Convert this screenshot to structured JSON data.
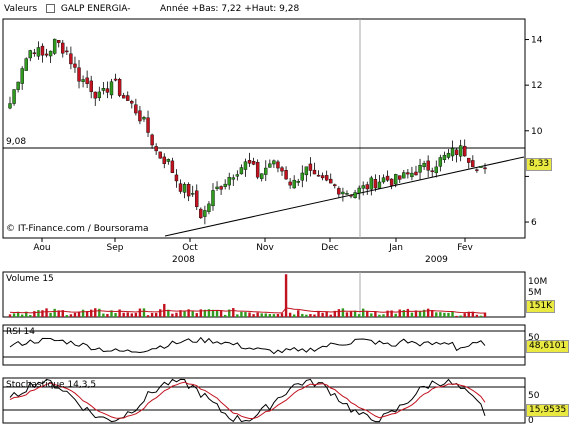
{
  "header": {
    "left": "Valeurs",
    "stock": "GALP ENERGIA-",
    "stats": "Année +Bas: 7,22 +Haut: 9,28"
  },
  "copyright": "© IT-Finance.com / Boursorama",
  "colors": {
    "up": "#2f9a1e",
    "down": "#c2121f",
    "current_bg": "#e9e942"
  },
  "chart_data": [
    {
      "type": "candlestick",
      "title": "GALP ENERGIA-",
      "x_tick_labels": [
        "Aou",
        "Sep",
        "Oct",
        "Nov",
        "Dec",
        "Jan",
        "Fev"
      ],
      "year_labels": [
        "2008",
        "2009"
      ],
      "y_ticks": [
        6,
        8,
        10,
        12,
        14
      ],
      "y_ticks_labeled": [
        "14",
        "12",
        "10",
        "6"
      ],
      "ylim": [
        5.3,
        14.9
      ],
      "reference_line": {
        "label": "9,08",
        "value": 9.08
      },
      "trend_line": {
        "from": [
          "early Oct",
          5.4
        ],
        "to": [
          "end Feb",
          8.9
        ]
      },
      "current_value": "8,33",
      "grid": "vertical line at year boundary",
      "approximate_path": [
        [
          "Aou",
          11.2
        ],
        [
          "Aou",
          12.8
        ],
        [
          "Aou",
          13.7
        ],
        [
          "Aou",
          13.2
        ],
        [
          "Aou",
          13.9
        ],
        [
          "Aou",
          13.5
        ],
        [
          "Sep",
          12.4
        ],
        [
          "Sep",
          12.0
        ],
        [
          "Sep",
          11.4
        ],
        [
          "Sep",
          12.2
        ],
        [
          "Sep",
          11.5
        ],
        [
          "Sep",
          11.0
        ],
        [
          "Sep",
          10.2
        ],
        [
          "Sep",
          9.0
        ],
        [
          "Oct",
          8.6
        ],
        [
          "Oct",
          7.6
        ],
        [
          "Oct",
          7.2
        ],
        [
          "Oct",
          6.2
        ],
        [
          "Oct",
          7.3
        ],
        [
          "Oct",
          7.8
        ],
        [
          "Oct",
          8.3
        ],
        [
          "Nov",
          8.6
        ],
        [
          "Nov",
          8.0
        ],
        [
          "Nov",
          8.6
        ],
        [
          "Nov",
          8.3
        ],
        [
          "Nov",
          7.6
        ],
        [
          "Nov",
          8.4
        ],
        [
          "Nov",
          7.8
        ],
        [
          "Dec",
          7.7
        ],
        [
          "Dec",
          7.5
        ],
        [
          "Dec",
          7.3
        ],
        [
          "Dec",
          7.4
        ],
        [
          "Dec",
          7.7
        ],
        [
          "Jan",
          7.9
        ],
        [
          "Jan",
          7.8
        ],
        [
          "Jan",
          8.0
        ],
        [
          "Jan",
          8.3
        ],
        [
          "Jan",
          8.4
        ],
        [
          "Jan",
          8.7
        ],
        [
          "Fev",
          9.0
        ],
        [
          "Fev",
          9.2
        ],
        [
          "Fev",
          8.6
        ],
        [
          "Fev",
          8.33
        ]
      ]
    },
    {
      "type": "bar",
      "title": "Volume 15",
      "y_tick_labels": [
        "10M",
        "5M"
      ],
      "ylim": [
        0,
        10
      ],
      "current_value": "151K",
      "notes": "daily volume bars (millions), red=down day, green=up day, thin red moving average"
    },
    {
      "type": "line",
      "title": "RSI 14",
      "y_tick_labels": [
        "50"
      ],
      "reference_levels": [
        70,
        30
      ],
      "ylim": [
        0,
        100
      ],
      "current_value": "48,6101"
    },
    {
      "type": "line",
      "title": "Stochastique 14,3,5",
      "y_tick_labels": [
        "50",
        "0"
      ],
      "reference_levels": [
        80,
        20
      ],
      "ylim": [
        0,
        100
      ],
      "current_value": "15,9535",
      "series": [
        {
          "name": "",
          "color": "black"
        },
        {
          "name": "",
          "color": "red"
        }
      ]
    }
  ]
}
